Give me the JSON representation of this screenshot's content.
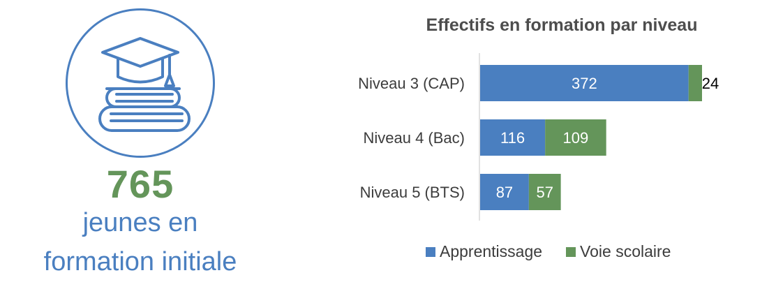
{
  "kpi": {
    "icon": "graduation-cap-books-icon",
    "number": "765",
    "line1": "jeunes en",
    "line2": "formation initiale"
  },
  "colors": {
    "blue": "#4a7fc0",
    "green": "#64955a",
    "kpi_green": "#64955a"
  },
  "chart_data": {
    "type": "bar",
    "orientation": "horizontal",
    "stacked": true,
    "title": "Effectifs en formation par niveau",
    "categories": [
      "Niveau 3 (CAP)",
      "Niveau 4 (Bac)",
      "Niveau 5 (BTS)"
    ],
    "series": [
      {
        "name": "Apprentissage",
        "values": [
          372,
          116,
          87
        ],
        "color": "#4a7fc0"
      },
      {
        "name": "Voie scolaire",
        "values": [
          24,
          109,
          57
        ],
        "color": "#64955a"
      }
    ],
    "xlim": [
      0,
      396
    ],
    "grid": false,
    "legend": "bottom"
  }
}
